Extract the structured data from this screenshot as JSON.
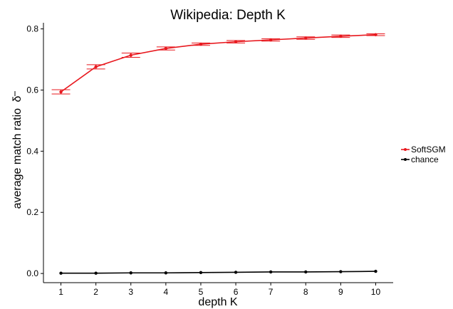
{
  "chart_data": {
    "type": "line",
    "title": "Wikipedia: Depth K",
    "xlabel": "depth K",
    "ylabel": "average match ratio",
    "ylabel_symbol": "δ",
    "x": [
      1,
      2,
      3,
      4,
      5,
      6,
      7,
      8,
      9,
      10
    ],
    "xlim": [
      0.5,
      10.5
    ],
    "ylim": [
      -0.03,
      0.82
    ],
    "yticks": [
      0.0,
      0.2,
      0.4,
      0.6,
      0.8
    ],
    "ytick_labels": [
      "0.0",
      "0.2",
      "0.4",
      "0.6",
      "0.8"
    ],
    "xtick_labels": [
      "1",
      "2",
      "3",
      "4",
      "5",
      "6",
      "7",
      "8",
      "9",
      "10"
    ],
    "grid": false,
    "legend_position": "right",
    "series": [
      {
        "name": "SoftSGM",
        "color": "#e8181e",
        "values": [
          0.594,
          0.676,
          0.714,
          0.736,
          0.75,
          0.758,
          0.764,
          0.77,
          0.776,
          0.781
        ],
        "error": [
          0.007,
          0.007,
          0.007,
          0.005,
          0.004,
          0.004,
          0.004,
          0.004,
          0.004,
          0.003
        ]
      },
      {
        "name": "chance",
        "color": "#000000",
        "values": [
          0.001,
          0.001,
          0.002,
          0.002,
          0.003,
          0.004,
          0.005,
          0.005,
          0.006,
          0.007
        ]
      }
    ]
  }
}
